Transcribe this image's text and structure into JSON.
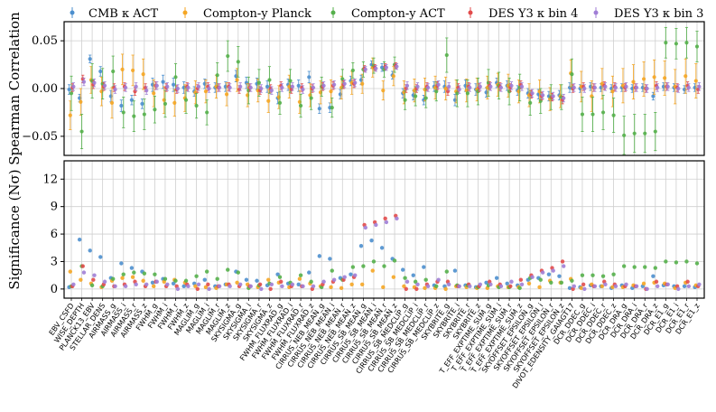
{
  "chart_data": {
    "type": "scatter",
    "series": [
      {
        "name": "CMB κ ACT",
        "color": "#4c8fce"
      },
      {
        "name": "Compton-y Planck",
        "color": "#f5a623"
      },
      {
        "name": "Compton-y ACT",
        "color": "#55b04b"
      },
      {
        "name": "DES Y3 κ bin 4",
        "color": "#e24b4b"
      },
      {
        "name": "DES Y3 κ bin 3",
        "color": "#a07ed6"
      }
    ],
    "top_panel": {
      "ylabel": "Spearman Correlation",
      "ylim": [
        -0.07,
        0.07
      ],
      "yticks": [
        -0.05,
        0.0,
        0.05
      ],
      "ytick_labels": [
        "−0.05",
        "0.00",
        "0.05"
      ]
    },
    "bottom_panel": {
      "ylabel": "Significance (Nσ)",
      "ylim": [
        -1,
        14
      ],
      "yticks": [
        0,
        3,
        6,
        9,
        12
      ],
      "ytick_labels": [
        "0",
        "3",
        "6",
        "9",
        "12"
      ]
    },
    "categories": [
      "EBV_CSFD",
      "WISE_DEPTH",
      "PLANCK13_EBV",
      "STELLAR_DENS",
      "AIRMASS_g",
      "AIRMASS_i",
      "AIRMASS_r",
      "AIRMASS_z",
      "FWHM_g",
      "FWHM_i",
      "FWHM_r",
      "FWHM_z",
      "MAGLIM_g",
      "MAGLIM_i",
      "MAGLIM_r",
      "MAGLIM_z",
      "SKYSIGMA_g",
      "SKYSIGMA_i",
      "SKYSIGMA_r",
      "SKYSIGMA_z",
      "FWHM_FLUXRAD_g",
      "FWHM_FLUXRAD_i",
      "FWHM_FLUXRAD_r",
      "FWHM_FLUXRAD_z",
      "CIRRUS_NEB_MEAN_g",
      "CIRRUS_NEB_MEAN_i",
      "CIRRUS_NEB_MEAN_r",
      "CIRRUS_NEB_MEAN_z",
      "CIRRUS_SB_MEAN_g",
      "CIRRUS_SB_MEAN_i",
      "CIRRUS_SB_MEAN_r",
      "CIRRUS_SB_MEAN_z",
      "CIRRUS_SB_MEDCLIP_g",
      "CIRRUS_SB_MEDCLIP_i",
      "CIRRUS_SB_MEDCLIP_r",
      "CIRRUS_SB_MEDCLIP_z",
      "SKYBRITE_g",
      "SKYBRITE_i",
      "SKYBRITE_r",
      "SKYBRITE_z",
      "T_EFF_EXPTIME_SUM_g",
      "T_EFF_EXPTIME_SUM_i",
      "T_EFF_EXPTIME_SUM_r",
      "T_EFF_EXPTIME_SUM_z",
      "SKYOFFSET_EPSILON_g",
      "SKYOFFSET_EPSILON_i",
      "SKYOFFSET_EPSILON_r",
      "SKYOFFSET_EPSILON_z",
      "DIVOT_EDENSITY_GAIAGT17",
      "DCR_DDEC_g",
      "DCR_DDEC_i",
      "DCR_DDEC_r",
      "DCR_DDEC_z",
      "DCR_DRA_g",
      "DCR_DRA_i",
      "DCR_DRA_r",
      "DCR_DRA_z",
      "DCR_E1_g",
      "DCR_E1_i",
      "DCR_E1_r",
      "DCR_E1_z"
    ],
    "display_labels": [
      "EBV_CSFD",
      "WISE_DEPTH",
      "PLANCK13_EBV",
      "STELLAR_DENS",
      "AIRMASS_g",
      "AIRMASS_i",
      "AIRMASS_r",
      "AIRMASS_z",
      "FWHM_g",
      "FWHM_i",
      "FWHM_r",
      "FWHM_z",
      "MAGLIM_g",
      "MAGLIM_i",
      "MAGLIM_r",
      "MAGLIM_z",
      "SKYSIGMA_g",
      "SKYSIGMA_i",
      "SKYSIGMA_r",
      "SKYSIGMA_z",
      "FWHM_FLUXRAD_g",
      "FWHM_FLUXRAD_i",
      "FWHM_FLUXRAD_r",
      "FWHM_FLUXRAD_z",
      "CIRRUS_NEB_MEAN_g",
      "CIRRUS_NEB_MEAN_i",
      "CIRRUS_NEB_MEAN_r",
      "CIRRUS_NEB_MEAN_z",
      "CIRRUS_SB_MEAN_g",
      "CIRRUS_SB_MEAN_i",
      "CIRRUS_SB_MEAN_r",
      "CIRRUS_SB_MEAN_z",
      "CIRRUS_SB_MEDCLIP_g",
      "CIRRUS_SB_MEDCLIP_i",
      "CIRRUS_SB_MEDCLIP_r",
      "CIRRUS_SB_MEDCLIP_z",
      "SKYBRITE_g",
      "SKYBRITE_i",
      "SKYBRITE_r",
      "SKYBRITE_z",
      "T_EFF_EXPTIME_SUM_g",
      "T_EFF_EXPTIME_SUM_i",
      "T_EFF_EXPTIME_SUM_r",
      "T_EFF_EXPTIME_SUM_z",
      "SKYOFFSET_EPSILON_g",
      "SKYOFFSET_EPSILON_i",
      "SKYOFFSET_EPSILON_r",
      "SKYOFFSET_EPSILON_z",
      "DIVOT_EDENSITY_GAIAGT17",
      "DCR_DDEC_g",
      "DCR_DDEC_i",
      "DCR_DDEC_r",
      "DCR_DDEC_z",
      "DCR_DRA_g",
      "DCR_DRA_i",
      "DCR_DRA_r",
      "DCR_DRA_z",
      "DCR_E1_g",
      "DCR_E1_i",
      "DCR_E1_r",
      "DCR_E1_z"
    ],
    "spearman": [
      [
        -0.001,
        -0.01,
        0.031,
        0.018,
        -0.008,
        -0.018,
        -0.012,
        -0.016,
        0.004,
        0.007,
        0.004,
        0.001,
        -0.003,
        0.005,
        0.001,
        0.002,
        0.013,
        0.006,
        0.005,
        0.002,
        -0.01,
        0.004,
        0.003,
        0.012,
        -0.021,
        -0.02,
        -0.006,
        0.008,
        0.009,
        0.025,
        0.022,
        0.014,
        -0.005,
        -0.007,
        -0.012,
        0.002,
        0.002,
        -0.012,
        0.003,
        -0.001,
        -0.004,
        0.006,
        0.003,
        -0.002,
        -0.005,
        -0.006,
        -0.008,
        -0.007,
        0.001,
        0.0,
        0.002,
        0.001,
        0.0,
        0.001,
        0.0,
        0.001,
        -0.008,
        0.002,
        0.001,
        -0.001,
        0.001
      ],
      [
        -0.028,
        -0.014,
        0.009,
        -0.003,
        -0.015,
        0.02,
        0.019,
        0.015,
        -0.005,
        -0.012,
        -0.015,
        -0.01,
        -0.004,
        -0.003,
        0.002,
        -0.006,
        0.009,
        -0.007,
        -0.002,
        -0.013,
        -0.009,
        0.002,
        -0.014,
        -0.007,
        -0.004,
        -0.003,
        0.001,
        0.006,
        0.005,
        0.022,
        -0.002,
        0.013,
        -0.004,
        -0.002,
        -0.001,
        0.001,
        0.0,
        -0.003,
        -0.002,
        -0.001,
        0.001,
        0.004,
        0.003,
        -0.003,
        -0.007,
        -0.003,
        -0.011,
        -0.008,
        0.016,
        0.002,
        -0.008,
        0.005,
        -0.003,
        0.003,
        0.007,
        0.01,
        0.012,
        0.011,
        0.002,
        0.013,
        0.008
      ],
      [
        -0.005,
        -0.045,
        0.008,
        0.005,
        0.018,
        -0.025,
        -0.029,
        -0.027,
        -0.022,
        -0.016,
        0.012,
        -0.012,
        -0.018,
        -0.025,
        0.014,
        0.034,
        0.028,
        -0.002,
        0.006,
        0.009,
        -0.015,
        0.008,
        -0.018,
        -0.01,
        0.002,
        -0.02,
        0.01,
        0.019,
        0.02,
        0.024,
        0.02,
        0.025,
        -0.012,
        -0.008,
        -0.01,
        -0.003,
        0.035,
        -0.005,
        -0.005,
        -0.003,
        0.006,
        0.003,
        -0.003,
        0.001,
        -0.015,
        -0.013,
        -0.009,
        -0.009,
        0.015,
        -0.027,
        -0.027,
        -0.025,
        -0.028,
        -0.049,
        -0.047,
        -0.047,
        -0.045,
        0.048,
        0.047,
        0.048,
        0.044
      ],
      [
        0.001,
        0.01,
        0.004,
        0.002,
        0.001,
        0.002,
        -0.003,
        0.001,
        0.003,
        0.001,
        -0.001,
        0.002,
        0.0,
        0.002,
        0.001,
        0.002,
        -0.001,
        0.001,
        -0.002,
        0.0,
        0.003,
        -0.001,
        0.001,
        0.0,
        0.002,
        0.003,
        0.004,
        0.005,
        0.021,
        0.022,
        0.023,
        0.024,
        0.0,
        0.0,
        0.002,
        0.003,
        -0.003,
        0.001,
        0.002,
        0.001,
        0.003,
        0.002,
        0.001,
        0.004,
        -0.006,
        -0.008,
        -0.009,
        -0.012,
        0.0,
        0.002,
        0.001,
        0.003,
        0.002,
        0.001,
        0.001,
        0.0,
        0.003,
        0.002,
        0.001,
        0.003,
        -0.001
      ],
      [
        0.002,
        0.007,
        0.006,
        0.003,
        -0.001,
        0.001,
        0.002,
        -0.002,
        0.003,
        0.002,
        0.0,
        0.001,
        0.002,
        0.0,
        0.001,
        0.001,
        0.002,
        0.001,
        0.0,
        -0.002,
        0.001,
        0.002,
        -0.001,
        0.001,
        0.003,
        0.004,
        0.005,
        0.006,
        0.02,
        0.021,
        0.022,
        0.023,
        0.003,
        0.002,
        0.001,
        0.004,
        0.002,
        -0.001,
        0.001,
        0.002,
        0.002,
        0.001,
        0.003,
        0.002,
        -0.005,
        -0.007,
        -0.008,
        -0.01,
        0.001,
        0.0,
        0.001,
        0.002,
        0.001,
        0.002,
        0.001,
        0.0,
        0.001,
        0.002,
        0.0,
        0.001,
        0.002
      ]
    ],
    "spearman_err": [
      [
        0.005,
        0.004,
        0.004,
        0.005,
        0.006,
        0.006,
        0.005,
        0.005,
        0.007,
        0.007,
        0.007,
        0.006,
        0.005,
        0.005,
        0.005,
        0.005,
        0.006,
        0.006,
        0.006,
        0.006,
        0.006,
        0.006,
        0.006,
        0.006,
        0.005,
        0.005,
        0.005,
        0.005,
        0.005,
        0.004,
        0.004,
        0.004,
        0.005,
        0.005,
        0.005,
        0.005,
        0.006,
        0.006,
        0.006,
        0.006,
        0.005,
        0.005,
        0.005,
        0.005,
        0.005,
        0.005,
        0.005,
        0.005,
        0.005,
        0.004,
        0.004,
        0.004,
        0.004,
        0.004,
        0.004,
        0.004,
        0.004,
        0.004,
        0.004,
        0.004,
        0.004
      ],
      [
        0.015,
        0.014,
        0.014,
        0.015,
        0.016,
        0.016,
        0.016,
        0.016,
        0.014,
        0.014,
        0.014,
        0.014,
        0.012,
        0.012,
        0.012,
        0.012,
        0.012,
        0.012,
        0.012,
        0.012,
        0.012,
        0.012,
        0.012,
        0.012,
        0.012,
        0.012,
        0.012,
        0.012,
        0.01,
        0.01,
        0.01,
        0.01,
        0.012,
        0.012,
        0.012,
        0.012,
        0.012,
        0.012,
        0.012,
        0.012,
        0.012,
        0.012,
        0.012,
        0.012,
        0.012,
        0.012,
        0.012,
        0.012,
        0.014,
        0.016,
        0.016,
        0.016,
        0.016,
        0.018,
        0.018,
        0.018,
        0.018,
        0.018,
        0.018,
        0.018,
        0.018
      ],
      [
        0.018,
        0.018,
        0.018,
        0.016,
        0.016,
        0.016,
        0.016,
        0.016,
        0.014,
        0.014,
        0.014,
        0.014,
        0.013,
        0.013,
        0.013,
        0.016,
        0.016,
        0.014,
        0.014,
        0.014,
        0.012,
        0.012,
        0.012,
        0.012,
        0.01,
        0.01,
        0.01,
        0.008,
        0.008,
        0.008,
        0.008,
        0.008,
        0.01,
        0.01,
        0.01,
        0.01,
        0.018,
        0.014,
        0.014,
        0.014,
        0.014,
        0.014,
        0.014,
        0.014,
        0.013,
        0.013,
        0.013,
        0.013,
        0.016,
        0.018,
        0.018,
        0.018,
        0.018,
        0.02,
        0.02,
        0.02,
        0.02,
        0.016,
        0.016,
        0.016,
        0.016
      ],
      [
        0.004,
        0.004,
        0.004,
        0.004,
        0.004,
        0.004,
        0.004,
        0.004,
        0.004,
        0.004,
        0.004,
        0.004,
        0.004,
        0.004,
        0.004,
        0.004,
        0.004,
        0.004,
        0.004,
        0.004,
        0.004,
        0.004,
        0.004,
        0.004,
        0.004,
        0.004,
        0.004,
        0.004,
        0.003,
        0.003,
        0.003,
        0.003,
        0.004,
        0.004,
        0.004,
        0.004,
        0.004,
        0.004,
        0.004,
        0.004,
        0.004,
        0.004,
        0.004,
        0.004,
        0.004,
        0.004,
        0.004,
        0.004,
        0.004,
        0.004,
        0.004,
        0.004,
        0.004,
        0.004,
        0.004,
        0.004,
        0.004,
        0.004,
        0.004,
        0.004,
        0.004
      ],
      [
        0.004,
        0.004,
        0.004,
        0.004,
        0.004,
        0.004,
        0.004,
        0.004,
        0.004,
        0.004,
        0.004,
        0.004,
        0.004,
        0.004,
        0.004,
        0.004,
        0.004,
        0.004,
        0.004,
        0.004,
        0.004,
        0.004,
        0.004,
        0.004,
        0.004,
        0.004,
        0.004,
        0.004,
        0.003,
        0.003,
        0.003,
        0.003,
        0.004,
        0.004,
        0.004,
        0.004,
        0.004,
        0.004,
        0.004,
        0.004,
        0.004,
        0.004,
        0.004,
        0.004,
        0.004,
        0.004,
        0.004,
        0.004,
        0.004,
        0.004,
        0.004,
        0.004,
        0.004,
        0.004,
        0.004,
        0.004,
        0.004,
        0.004,
        0.004,
        0.004,
        0.004
      ]
    ],
    "significance": [
      [
        0.2,
        5.4,
        4.2,
        3.5,
        1.2,
        2.8,
        2.3,
        1.9,
        0.7,
        1.1,
        0.6,
        0.3,
        0.6,
        1.0,
        0.3,
        0.5,
        1.9,
        1.0,
        0.9,
        0.4,
        1.6,
        0.6,
        0.5,
        1.8,
        3.6,
        3.3,
        1.2,
        1.6,
        4.7,
        5.3,
        4.5,
        3.3,
        2.1,
        1.5,
        2.4,
        0.4,
        0.3,
        2.0,
        0.4,
        0.2,
        0.7,
        1.2,
        0.6,
        0.4,
        1.0,
        1.2,
        1.6,
        1.4,
        0.1,
        0.2,
        0.4,
        0.3,
        0.1,
        0.4,
        0.1,
        0.3,
        1.4,
        0.4,
        0.3,
        0.3,
        0.2
      ],
      [
        1.9,
        1.0,
        0.6,
        0.2,
        0.9,
        1.2,
        1.3,
        0.9,
        0.3,
        0.8,
        1.0,
        0.7,
        0.3,
        0.2,
        0.1,
        0.5,
        0.7,
        0.5,
        0.2,
        1.0,
        0.7,
        0.2,
        1.1,
        0.6,
        0.3,
        0.2,
        0.1,
        0.5,
        0.5,
        2.0,
        0.2,
        1.3,
        0.3,
        0.2,
        0.1,
        0.1,
        0.0,
        0.3,
        0.2,
        0.1,
        0.1,
        0.3,
        0.2,
        0.2,
        0.6,
        0.2,
        0.9,
        0.7,
        1.1,
        0.1,
        0.5,
        0.3,
        0.2,
        0.2,
        0.4,
        0.6,
        0.7,
        0.6,
        0.1,
        0.7,
        0.4
      ],
      [
        0.3,
        2.5,
        0.4,
        0.3,
        1.1,
        1.6,
        1.8,
        1.7,
        1.6,
        1.1,
        0.9,
        0.9,
        1.4,
        1.9,
        1.1,
        2.1,
        1.8,
        0.1,
        0.4,
        0.6,
        1.3,
        0.7,
        1.5,
        0.8,
        0.2,
        2.0,
        1.0,
        2.4,
        2.5,
        3.0,
        2.5,
        3.1,
        1.2,
        0.8,
        1.0,
        0.3,
        1.9,
        0.4,
        0.4,
        0.2,
        0.4,
        0.2,
        0.2,
        0.1,
        1.2,
        1.0,
        0.7,
        0.7,
        0.9,
        1.5,
        1.5,
        1.4,
        1.6,
        2.5,
        2.4,
        2.4,
        2.3,
        3.0,
        2.9,
        3.0,
        2.8
      ],
      [
        0.3,
        2.5,
        1.0,
        0.5,
        0.3,
        0.5,
        0.8,
        0.3,
        0.8,
        0.3,
        0.3,
        0.5,
        0.0,
        0.5,
        0.3,
        0.5,
        0.3,
        0.3,
        0.5,
        0.0,
        0.8,
        0.3,
        0.3,
        0.0,
        0.5,
        0.8,
        1.0,
        1.3,
        7.0,
        7.3,
        7.7,
        8.0,
        0.0,
        0.0,
        0.5,
        0.8,
        0.8,
        0.3,
        0.5,
        0.3,
        0.8,
        0.5,
        0.3,
        1.0,
        1.5,
        2.0,
        2.3,
        3.0,
        0.0,
        0.5,
        0.3,
        0.8,
        0.5,
        0.3,
        0.3,
        0.0,
        0.8,
        0.5,
        0.3,
        0.8,
        0.3
      ],
      [
        0.5,
        1.8,
        1.5,
        0.8,
        0.3,
        0.3,
        0.5,
        0.5,
        0.8,
        0.5,
        0.0,
        0.3,
        0.5,
        0.0,
        0.3,
        0.3,
        0.5,
        0.3,
        0.0,
        0.5,
        0.3,
        0.5,
        0.3,
        0.3,
        0.8,
        1.0,
        1.3,
        1.5,
        6.7,
        7.0,
        7.3,
        7.7,
        0.8,
        0.5,
        0.3,
        1.0,
        0.5,
        0.3,
        0.3,
        0.5,
        0.5,
        0.3,
        0.8,
        0.5,
        1.3,
        1.8,
        2.0,
        2.5,
        0.3,
        0.0,
        0.3,
        0.5,
        0.3,
        0.5,
        0.3,
        0.0,
        0.3,
        0.5,
        0.0,
        0.3,
        0.5
      ]
    ]
  }
}
